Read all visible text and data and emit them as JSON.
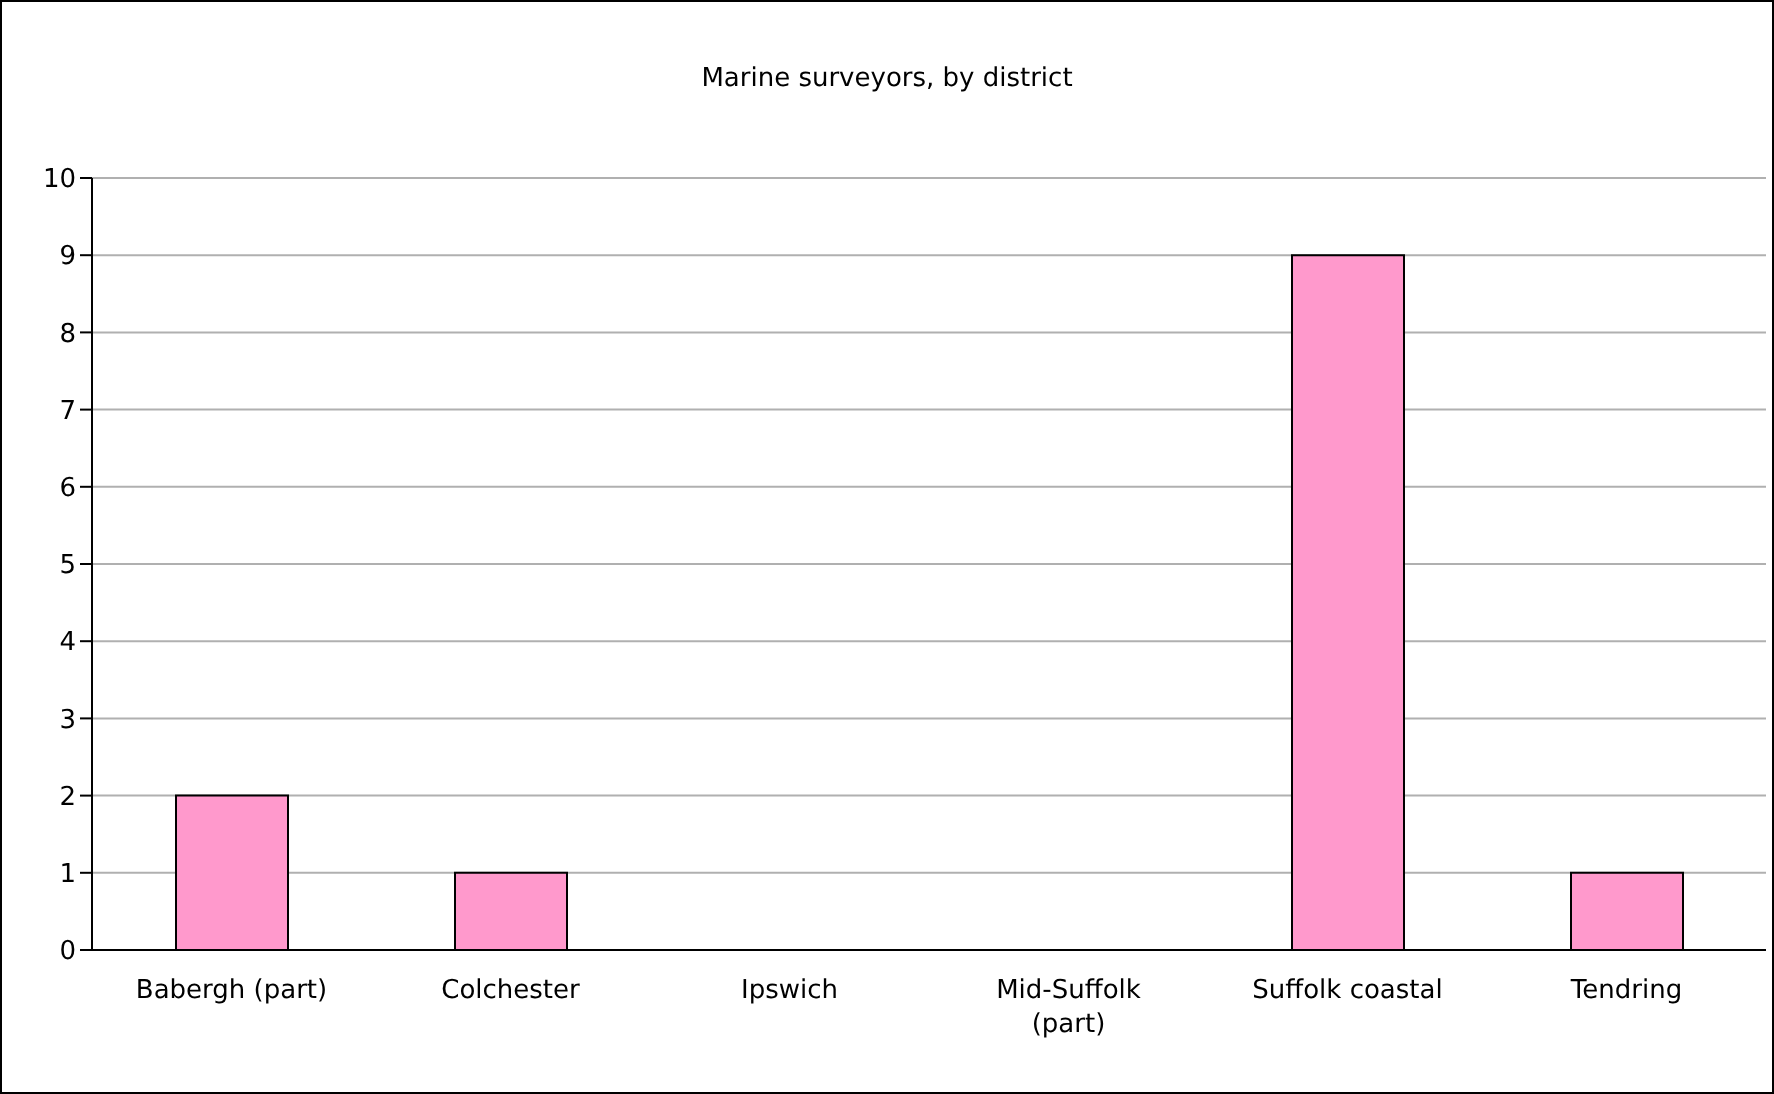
{
  "chart_data": {
    "type": "bar",
    "title": "Marine surveyors, by district",
    "categories": [
      "Babergh (part)",
      "Colchester",
      "Ipswich",
      "Mid-Suffolk (part)",
      "Suffolk coastal",
      "Tendring"
    ],
    "values": [
      2,
      1,
      0,
      0,
      9,
      1
    ],
    "color": "#ff99cc",
    "ylim": [
      0,
      10
    ],
    "yticks": [
      0,
      1,
      2,
      3,
      4,
      5,
      6,
      7,
      8,
      9,
      10
    ],
    "grid": "y"
  }
}
